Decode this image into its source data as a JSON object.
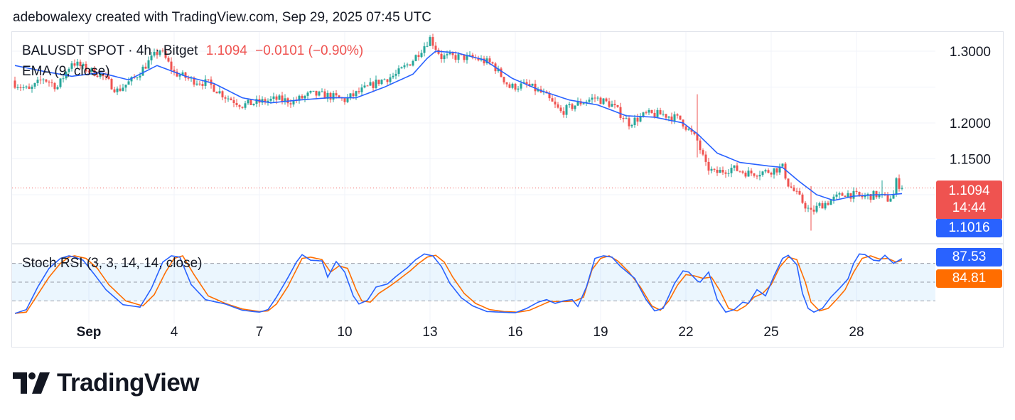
{
  "header": {
    "text": "adebowalexy created with TradingView.com, Sep 29, 2025 07:45 UTC"
  },
  "legend": {
    "symbol": "BALUSDT SPOT · 4h · Bitget",
    "price": "1.1094",
    "change": "−0.0101 (−0.90%)",
    "ema": "EMA (9, close)",
    "stoch": "Stoch RSI (3, 3, 14, 14, close)"
  },
  "tags": {
    "last_price": "1.1094",
    "countdown": "14:44",
    "ema_value": "1.1016",
    "stoch_k": "87.53",
    "stoch_d": "84.81"
  },
  "colors": {
    "up": "#26a69a",
    "down": "#ef5350",
    "ema": "#2962ff",
    "k_line": "#2962ff",
    "d_line": "#ff6d00",
    "price_tag": "#ef5350"
  },
  "brand": {
    "name": "TradingView"
  },
  "chart_data": [
    {
      "type": "candlestick",
      "title": "BALUSDT SPOT · 4h · Bitget",
      "ylim": [
        1.05,
        1.32
      ],
      "y_ticks": [
        "1.3000",
        "1.2000",
        "1.1500"
      ],
      "x_ticks": [
        "Sep",
        "4",
        "7",
        "10",
        "13",
        "16",
        "19",
        "22",
        "25",
        "28"
      ],
      "x_tick_index": [
        26,
        56,
        86,
        116,
        146,
        176,
        206,
        236,
        266,
        296
      ],
      "grid": true,
      "last_price": 1.1094,
      "ema_last": 1.1016,
      "anchors_close": [
        [
          0,
          1.255
        ],
        [
          5,
          1.245
        ],
        [
          10,
          1.262
        ],
        [
          15,
          1.25
        ],
        [
          20,
          1.285
        ],
        [
          25,
          1.275
        ],
        [
          30,
          1.268
        ],
        [
          36,
          1.245
        ],
        [
          42,
          1.262
        ],
        [
          47,
          1.285
        ],
        [
          51,
          1.302
        ],
        [
          56,
          1.27
        ],
        [
          62,
          1.26
        ],
        [
          68,
          1.255
        ],
        [
          74,
          1.237
        ],
        [
          80,
          1.225
        ],
        [
          86,
          1.229
        ],
        [
          92,
          1.233
        ],
        [
          98,
          1.23
        ],
        [
          104,
          1.24
        ],
        [
          110,
          1.238
        ],
        [
          116,
          1.232
        ],
        [
          122,
          1.245
        ],
        [
          128,
          1.258
        ],
        [
          134,
          1.267
        ],
        [
          140,
          1.288
        ],
        [
          146,
          1.318
        ],
        [
          150,
          1.292
        ],
        [
          156,
          1.292
        ],
        [
          162,
          1.29
        ],
        [
          168,
          1.282
        ],
        [
          174,
          1.25
        ],
        [
          180,
          1.253
        ],
        [
          186,
          1.24
        ],
        [
          192,
          1.215
        ],
        [
          198,
          1.227
        ],
        [
          204,
          1.235
        ],
        [
          210,
          1.225
        ],
        [
          216,
          1.2
        ],
        [
          222,
          1.212
        ],
        [
          228,
          1.212
        ],
        [
          234,
          1.205
        ],
        [
          240,
          1.175
        ],
        [
          243,
          1.14
        ],
        [
          246,
          1.13
        ],
        [
          252,
          1.137
        ],
        [
          258,
          1.13
        ],
        [
          264,
          1.132
        ],
        [
          270,
          1.138
        ],
        [
          272,
          1.115
        ],
        [
          276,
          1.095
        ],
        [
          280,
          1.075
        ],
        [
          283,
          1.085
        ],
        [
          286,
          1.09
        ],
        [
          289,
          1.096
        ],
        [
          292,
          1.102
        ],
        [
          298,
          1.097
        ],
        [
          303,
          1.1
        ],
        [
          307,
          1.094
        ],
        [
          309,
          1.1
        ],
        [
          310,
          1.118
        ],
        [
          312,
          1.1094
        ]
      ],
      "ema_anchors": [
        [
          0,
          1.28
        ],
        [
          10,
          1.272
        ],
        [
          20,
          1.265
        ],
        [
          30,
          1.27
        ],
        [
          40,
          1.26
        ],
        [
          50,
          1.28
        ],
        [
          60,
          1.265
        ],
        [
          70,
          1.255
        ],
        [
          80,
          1.235
        ],
        [
          90,
          1.228
        ],
        [
          100,
          1.232
        ],
        [
          110,
          1.235
        ],
        [
          120,
          1.235
        ],
        [
          130,
          1.25
        ],
        [
          140,
          1.268
        ],
        [
          145,
          1.29
        ],
        [
          148,
          1.3
        ],
        [
          155,
          1.298
        ],
        [
          165,
          1.288
        ],
        [
          175,
          1.262
        ],
        [
          185,
          1.245
        ],
        [
          195,
          1.232
        ],
        [
          205,
          1.225
        ],
        [
          215,
          1.21
        ],
        [
          225,
          1.208
        ],
        [
          235,
          1.2
        ],
        [
          240,
          1.185
        ],
        [
          247,
          1.158
        ],
        [
          255,
          1.145
        ],
        [
          265,
          1.14
        ],
        [
          270,
          1.138
        ],
        [
          276,
          1.118
        ],
        [
          282,
          1.1
        ],
        [
          288,
          1.092
        ],
        [
          295,
          1.098
        ],
        [
          303,
          1.1
        ],
        [
          308,
          1.1
        ],
        [
          312,
          1.1016
        ]
      ],
      "spikes": [
        [
          240,
          1.24,
          1.152
        ],
        [
          280,
          1.112,
          1.05
        ],
        [
          305,
          1.12,
          1.1
        ]
      ]
    },
    {
      "type": "line",
      "title": "Stoch RSI (3, 3, 14, 14, close)",
      "ylim": [
        0,
        100
      ],
      "bands": [
        20,
        50,
        80
      ],
      "k_last": 87.53,
      "d_last": 84.81,
      "series_k_anchors": [
        [
          0,
          0
        ],
        [
          4,
          6
        ],
        [
          8,
          42
        ],
        [
          12,
          72
        ],
        [
          16,
          88
        ],
        [
          19,
          92
        ],
        [
          21,
          90
        ],
        [
          24,
          85
        ],
        [
          28,
          62
        ],
        [
          32,
          38
        ],
        [
          38,
          14
        ],
        [
          44,
          10
        ],
        [
          48,
          40
        ],
        [
          52,
          82
        ],
        [
          55,
          92
        ],
        [
          58,
          90
        ],
        [
          62,
          46
        ],
        [
          67,
          22
        ],
        [
          74,
          15
        ],
        [
          80,
          5
        ],
        [
          86,
          2
        ],
        [
          89,
          6
        ],
        [
          92,
          26
        ],
        [
          96,
          57
        ],
        [
          99,
          82
        ],
        [
          101,
          94
        ],
        [
          104,
          85
        ],
        [
          108,
          84
        ],
        [
          110,
          58
        ],
        [
          113,
          83
        ],
        [
          116,
          66
        ],
        [
          119,
          28
        ],
        [
          121,
          15
        ],
        [
          124,
          21
        ],
        [
          127,
          42
        ],
        [
          131,
          47
        ],
        [
          134,
          59
        ],
        [
          138,
          73
        ],
        [
          141,
          86
        ],
        [
          144,
          95
        ],
        [
          147,
          92
        ],
        [
          150,
          75
        ],
        [
          153,
          48
        ],
        [
          157,
          25
        ],
        [
          161,
          12
        ],
        [
          166,
          3
        ],
        [
          171,
          2
        ],
        [
          176,
          1
        ],
        [
          180,
          8
        ],
        [
          184,
          18
        ],
        [
          187,
          22
        ],
        [
          190,
          16
        ],
        [
          193,
          20
        ],
        [
          196,
          22
        ],
        [
          198,
          11
        ],
        [
          201,
          42
        ],
        [
          204,
          88
        ],
        [
          207,
          92
        ],
        [
          210,
          90
        ],
        [
          213,
          75
        ],
        [
          218,
          56
        ],
        [
          222,
          22
        ],
        [
          225,
          4
        ],
        [
          228,
          8
        ],
        [
          232,
          48
        ],
        [
          235,
          68
        ],
        [
          237,
          66
        ],
        [
          240,
          52
        ],
        [
          241,
          50
        ],
        [
          244,
          66
        ],
        [
          247,
          22
        ],
        [
          250,
          2
        ],
        [
          253,
          6
        ],
        [
          256,
          18
        ],
        [
          258,
          16
        ],
        [
          261,
          38
        ],
        [
          264,
          28
        ],
        [
          267,
          60
        ],
        [
          270,
          88
        ],
        [
          272,
          93
        ],
        [
          275,
          78
        ],
        [
          277,
          32
        ],
        [
          279,
          8
        ],
        [
          281,
          2
        ],
        [
          284,
          8
        ],
        [
          287,
          26
        ],
        [
          290,
          40
        ],
        [
          293,
          55
        ],
        [
          295,
          80
        ],
        [
          297,
          95
        ],
        [
          299,
          94
        ],
        [
          302,
          85
        ],
        [
          304,
          84
        ],
        [
          306,
          93
        ],
        [
          309,
          80
        ],
        [
          312,
          87.53
        ]
      ],
      "series_d_anchors": [
        [
          0,
          0
        ],
        [
          4,
          2
        ],
        [
          8,
          30
        ],
        [
          12,
          58
        ],
        [
          16,
          80
        ],
        [
          19,
          90
        ],
        [
          21,
          92
        ],
        [
          25,
          88
        ],
        [
          29,
          72
        ],
        [
          33,
          46
        ],
        [
          39,
          20
        ],
        [
          45,
          12
        ],
        [
          49,
          30
        ],
        [
          53,
          66
        ],
        [
          56,
          88
        ],
        [
          59,
          92
        ],
        [
          63,
          62
        ],
        [
          68,
          28
        ],
        [
          74,
          16
        ],
        [
          80,
          7
        ],
        [
          86,
          3
        ],
        [
          89,
          4
        ],
        [
          92,
          15
        ],
        [
          96,
          43
        ],
        [
          99,
          70
        ],
        [
          101,
          88
        ],
        [
          104,
          90
        ],
        [
          108,
          86
        ],
        [
          111,
          66
        ],
        [
          114,
          76
        ],
        [
          117,
          72
        ],
        [
          120,
          38
        ],
        [
          122,
          20
        ],
        [
          125,
          18
        ],
        [
          128,
          32
        ],
        [
          132,
          44
        ],
        [
          135,
          54
        ],
        [
          139,
          68
        ],
        [
          142,
          80
        ],
        [
          145,
          90
        ],
        [
          148,
          93
        ],
        [
          151,
          82
        ],
        [
          154,
          58
        ],
        [
          158,
          32
        ],
        [
          162,
          16
        ],
        [
          167,
          6
        ],
        [
          172,
          3
        ],
        [
          177,
          2
        ],
        [
          181,
          5
        ],
        [
          185,
          13
        ],
        [
          188,
          19
        ],
        [
          191,
          19
        ],
        [
          194,
          19
        ],
        [
          197,
          20
        ],
        [
          200,
          26
        ],
        [
          203,
          70
        ],
        [
          206,
          88
        ],
        [
          209,
          92
        ],
        [
          212,
          84
        ],
        [
          216,
          66
        ],
        [
          220,
          42
        ],
        [
          224,
          12
        ],
        [
          227,
          5
        ],
        [
          230,
          20
        ],
        [
          233,
          45
        ],
        [
          236,
          62
        ],
        [
          239,
          60
        ],
        [
          242,
          56
        ],
        [
          245,
          58
        ],
        [
          248,
          36
        ],
        [
          251,
          8
        ],
        [
          254,
          4
        ],
        [
          257,
          12
        ],
        [
          260,
          26
        ],
        [
          263,
          32
        ],
        [
          266,
          46
        ],
        [
          269,
          74
        ],
        [
          272,
          90
        ],
        [
          275,
          86
        ],
        [
          278,
          50
        ],
        [
          280,
          18
        ],
        [
          283,
          4
        ],
        [
          286,
          8
        ],
        [
          289,
          22
        ],
        [
          292,
          38
        ],
        [
          295,
          66
        ],
        [
          298,
          88
        ],
        [
          301,
          92
        ],
        [
          304,
          87
        ],
        [
          307,
          88
        ],
        [
          310,
          82
        ],
        [
          312,
          84.81
        ]
      ]
    }
  ]
}
